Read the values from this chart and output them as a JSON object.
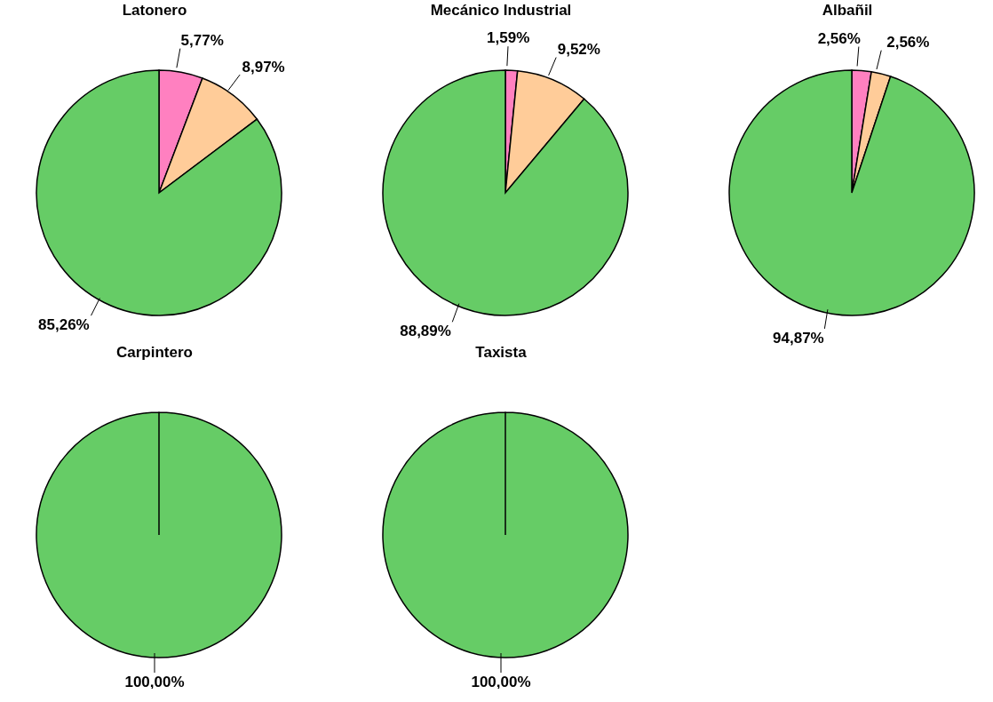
{
  "chart_data": [
    {
      "type": "pie",
      "title": "Latonero",
      "categories": [
        null,
        null,
        null
      ],
      "values": [
        5.77,
        8.97,
        85.26
      ],
      "colors": [
        "#ff80c0",
        "#ffcc99",
        "#66cc66"
      ],
      "value_labels": [
        "5,77%",
        "8,97%",
        "85,26%"
      ]
    },
    {
      "type": "pie",
      "title": "Mecánico Industrial",
      "categories": [
        null,
        null,
        null
      ],
      "values": [
        1.59,
        9.52,
        88.89
      ],
      "colors": [
        "#ff80c0",
        "#ffcc99",
        "#66cc66"
      ],
      "value_labels": [
        "1,59%",
        "9,52%",
        "88,89%"
      ]
    },
    {
      "type": "pie",
      "title": "Albañil",
      "categories": [
        null,
        null,
        null
      ],
      "values": [
        2.56,
        2.56,
        94.87
      ],
      "colors": [
        "#ff80c0",
        "#ffcc99",
        "#66cc66"
      ],
      "value_labels": [
        "2,56%",
        "2,56%",
        "94,87%"
      ]
    },
    {
      "type": "pie",
      "title": "Carpintero",
      "categories": [
        null,
        null,
        null
      ],
      "values": [
        0,
        0,
        100
      ],
      "colors": [
        "#ff80c0",
        "#ffcc99",
        "#66cc66"
      ],
      "value_labels": [
        null,
        null,
        "100,00%"
      ]
    },
    {
      "type": "pie",
      "title": "Taxista",
      "categories": [
        null,
        null,
        null
      ],
      "values": [
        0,
        0,
        100
      ],
      "colors": [
        "#ff80c0",
        "#ffcc99",
        "#66cc66"
      ],
      "value_labels": [
        null,
        null,
        "100,00%"
      ]
    }
  ]
}
